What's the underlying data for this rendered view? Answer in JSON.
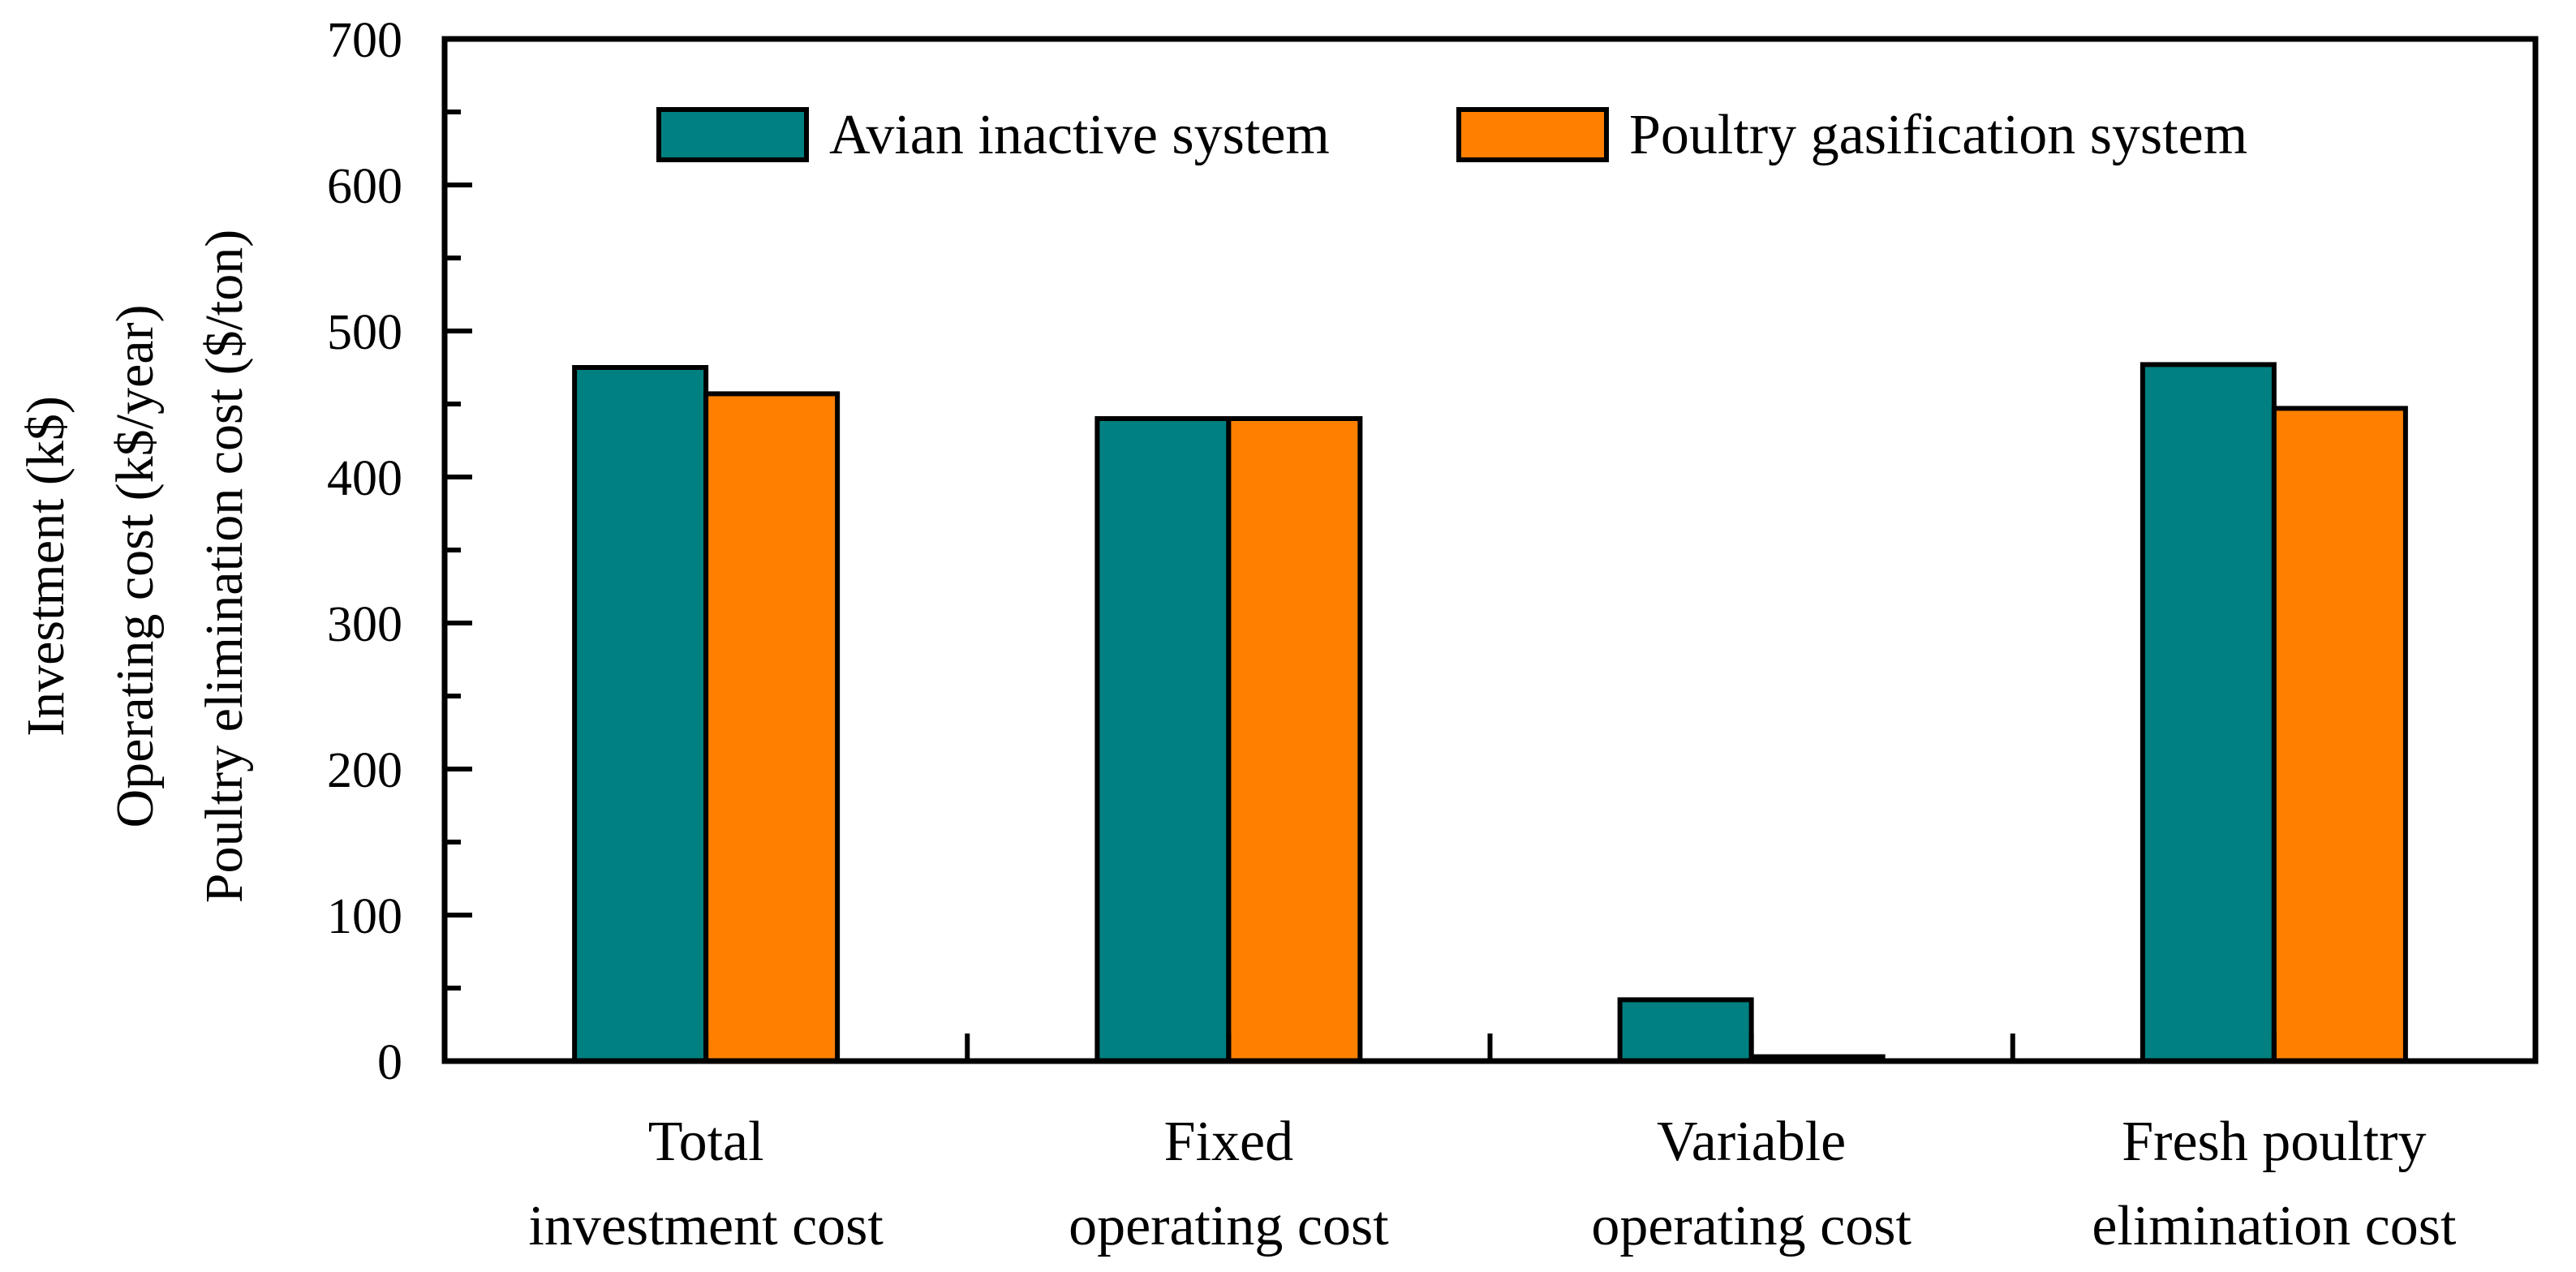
{
  "chart_data": {
    "type": "bar",
    "title": "",
    "categories": [
      [
        "Total",
        "investment cost"
      ],
      [
        "Fixed",
        "operating cost"
      ],
      [
        "Variable",
        "operating cost"
      ],
      [
        "Fresh poultry",
        "elimination cost"
      ]
    ],
    "series": [
      {
        "name": "Avian inactive system",
        "color": "#008080",
        "values": [
          475,
          440,
          42,
          477
        ]
      },
      {
        "name": "Poultry gasification system",
        "color": "#ff8000",
        "values": [
          457,
          440,
          3,
          447
        ]
      }
    ],
    "ylabel_lines": [
      "Investment (k$)",
      "Operating cost (k$/year)",
      "Poultry elimination cost ($/ton)"
    ],
    "xlabel": "",
    "ylim": [
      0,
      700
    ],
    "yticks": [
      0,
      100,
      200,
      300,
      400,
      500,
      600,
      700
    ],
    "legend_position": "top-center",
    "grid": false
  }
}
